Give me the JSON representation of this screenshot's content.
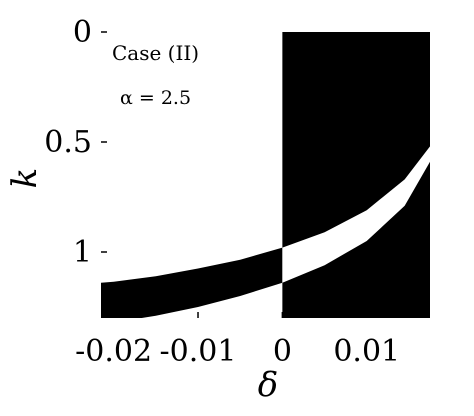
{
  "chart_data": {
    "type": "heatmap",
    "title": "",
    "xlabel": "δ",
    "ylabel": "k",
    "xlim": [
      -0.0215,
      0.0175
    ],
    "ylim": [
      1.3,
      0.0
    ],
    "y_axis_reversed": true,
    "x_ticks": [
      {
        "value": -0.02,
        "label": "-0.02"
      },
      {
        "value": -0.01,
        "label": "-0.01"
      },
      {
        "value": 0,
        "label": "0"
      },
      {
        "value": 0.01,
        "label": "0.01"
      }
    ],
    "y_ticks": [
      {
        "value": 0,
        "label": "0"
      },
      {
        "value": 0.5,
        "label": "0.5"
      },
      {
        "value": 1,
        "label": "1"
      }
    ],
    "annotations": {
      "case": "Case (II)",
      "alpha": "α = 2.5"
    },
    "colors": {
      "region": "#000000",
      "background": "#ffffff"
    },
    "band_boundaries": {
      "delta": [
        -0.0215,
        -0.02,
        -0.015,
        -0.01,
        -0.005,
        0.0,
        0.005,
        0.01,
        0.0145,
        0.0175
      ],
      "k_lower": [
        1.14,
        1.135,
        1.11,
        1.075,
        1.035,
        0.98,
        0.91,
        0.81,
        0.67,
        0.52
      ],
      "k_upper": [
        1.33,
        1.32,
        1.29,
        1.25,
        1.2,
        1.14,
        1.06,
        0.95,
        0.79,
        0.59
      ]
    },
    "grid": false,
    "legend": "none"
  }
}
